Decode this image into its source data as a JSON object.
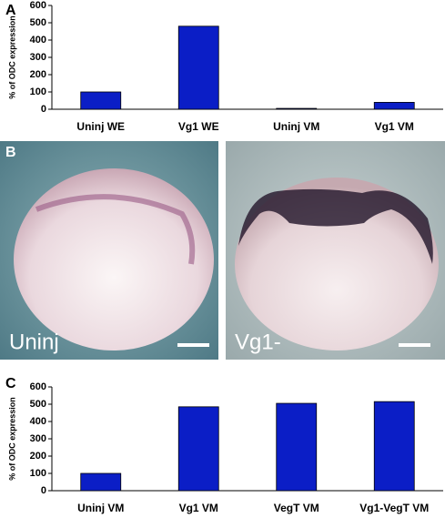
{
  "chart_data": [
    {
      "type": "bar",
      "panel": "A",
      "y_label": "% of ODC expression",
      "categories": [
        "Uninj WE",
        "Vg1 WE",
        "Uninj VM",
        "Vg1 VM"
      ],
      "values": [
        100,
        480,
        5,
        40
      ],
      "color": "#0b1ec6",
      "ylim": [
        0,
        600
      ],
      "yticks": [
        0,
        100,
        200,
        300,
        400,
        500,
        600
      ]
    },
    {
      "type": "bar",
      "panel": "C",
      "y_label": "% of ODC expression",
      "categories": [
        "Uninj VM",
        "Vg1 VM",
        "VegT VM",
        "Vg1-VegT VM"
      ],
      "values": [
        100,
        485,
        505,
        515
      ],
      "color": "#0b1ec6",
      "ylim": [
        0,
        600
      ],
      "yticks": [
        0,
        100,
        200,
        300,
        400,
        500,
        600
      ]
    }
  ],
  "images": {
    "panel": "B",
    "labels": [
      "Uninj",
      "Vg1-"
    ]
  }
}
